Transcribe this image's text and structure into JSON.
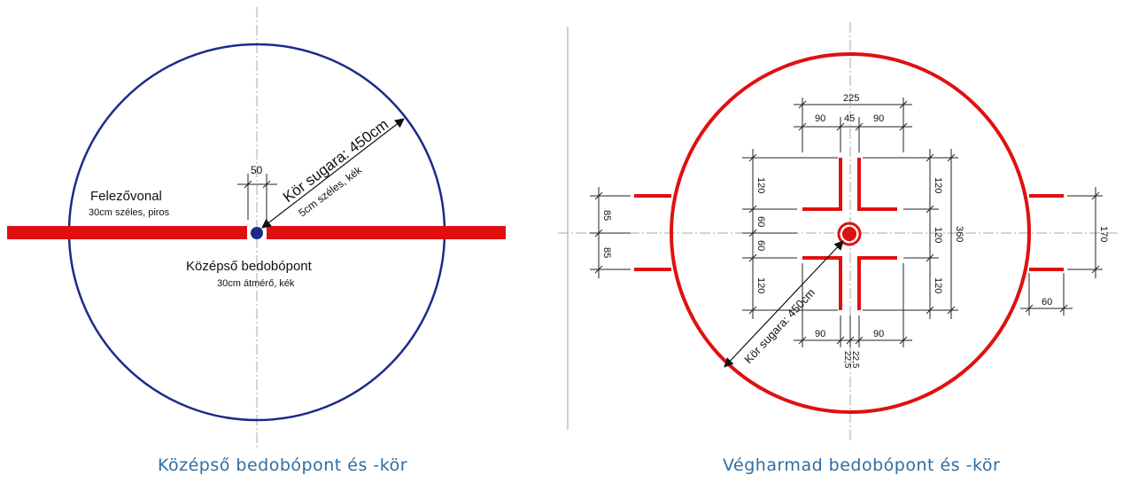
{
  "left": {
    "caption": "Középső bedobópont és -kör",
    "halfway_title": "Felezővonal",
    "halfway_sub": "30cm széles, piros",
    "radius_label": "Kör sugara: 450cm",
    "radius_sub": "5cm széles, kék",
    "dim_50": "50",
    "center_title": "Középső bedobópont",
    "center_sub": "30cm átmérő, kék",
    "circle_color": "#1c2a8a",
    "line_color": "#e01010"
  },
  "right": {
    "caption": "Végharmad bedobópont és -kör",
    "radius_label": "Kör sugara: 450cm",
    "dim_top_total": "225",
    "dim_top_a": "90",
    "dim_top_b": "45",
    "dim_top_c": "90",
    "dim_left_a": "120",
    "dim_left_b": "60",
    "dim_left_c": "60",
    "dim_left_d": "120",
    "dim_right_a": "120",
    "dim_right_b": "120",
    "dim_right_c": "120",
    "dim_right_total": "360",
    "dim_far_left_a": "85",
    "dim_far_left_b": "85",
    "dim_far_right": "170",
    "dim_hash": "60",
    "dim_bottom_a": "90",
    "dim_bottom_b": "90",
    "dim_bottom_c": "22,5",
    "dim_bottom_d": "22,5",
    "circle_color": "#e01010"
  }
}
